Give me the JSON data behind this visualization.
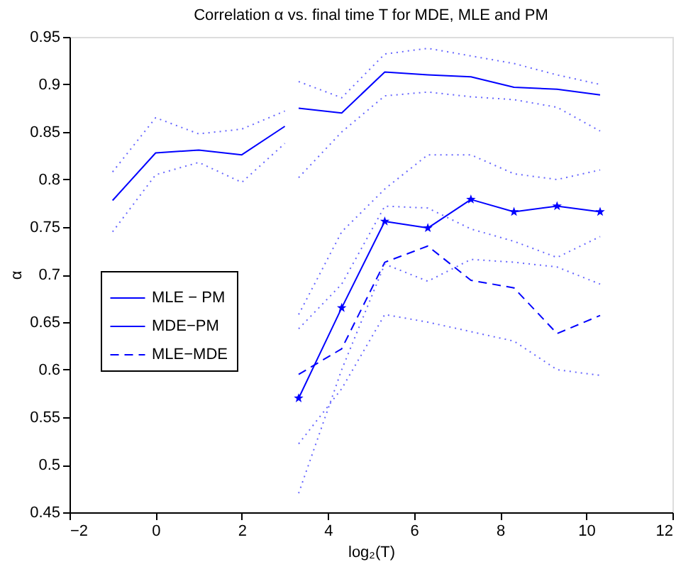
{
  "chart_data": {
    "type": "line",
    "title": "Correlation α vs. final time T for MDE, MLE and PM",
    "xlabel": "log₂(T)",
    "ylabel": "α",
    "xlim": [
      -2,
      12
    ],
    "xticks": [
      -2,
      0,
      2,
      4,
      6,
      8,
      10,
      12
    ],
    "ylim": [
      0.45,
      0.95
    ],
    "yticks": [
      0.45,
      0.5,
      0.55,
      0.6,
      0.65,
      0.7,
      0.75,
      0.8,
      0.85,
      0.9,
      0.95
    ],
    "grid": false,
    "legend": "left",
    "series": [
      {
        "name": "MLE − PM",
        "color": "#0000ff",
        "line_style": "solid",
        "marker": "none",
        "x": [
          -1,
          0,
          1,
          2,
          3
        ],
        "values": [
          0.778,
          0.828,
          0.831,
          0.826,
          0.856
        ]
      },
      {
        "name": "MDE−PM",
        "color": "#0000ff",
        "line_style": "solid",
        "marker": "star",
        "x": [
          3.32,
          4.32,
          5.32,
          6.32,
          7.32,
          8.32,
          9.32,
          10.32
        ],
        "values": [
          0.57,
          0.665,
          0.756,
          0.749,
          0.779,
          0.766,
          0.772,
          0.766
        ]
      },
      {
        "name": "MLE−MDE",
        "color": "#0000ff",
        "line_style": "dashed",
        "marker": "none",
        "x": [
          3.32,
          4.32,
          5.32,
          6.32,
          7.32,
          8.32,
          9.32,
          10.32
        ],
        "values": [
          0.595,
          0.622,
          0.713,
          0.73,
          0.694,
          0.686,
          0.638,
          0.657
        ]
      },
      {
        "color": "#0000ff",
        "line_style": "solid",
        "marker": "none",
        "x": [
          3.32,
          4.32,
          5.32,
          6.32,
          7.32,
          8.32,
          9.32,
          10.32
        ],
        "values": [
          0.875,
          0.87,
          0.913,
          0.91,
          0.908,
          0.897,
          0.895,
          0.889
        ]
      },
      {
        "color": "#6666ff",
        "line_style": "dotted",
        "marker": "none",
        "x": [
          -1,
          0,
          1,
          2,
          3
        ],
        "values": [
          0.808,
          0.865,
          0.848,
          0.853,
          0.872
        ]
      },
      {
        "color": "#6666ff",
        "line_style": "dotted",
        "marker": "none",
        "x": [
          -1,
          0,
          1,
          2,
          3
        ],
        "values": [
          0.745,
          0.805,
          0.818,
          0.797,
          0.838
        ]
      },
      {
        "color": "#6666ff",
        "line_style": "dotted",
        "marker": "none",
        "x": [
          3.32,
          4.32,
          5.32,
          6.32,
          7.32,
          8.32,
          9.32,
          10.32
        ],
        "values": [
          0.903,
          0.886,
          0.932,
          0.938,
          0.93,
          0.922,
          0.91,
          0.9
        ]
      },
      {
        "color": "#6666ff",
        "line_style": "dotted",
        "marker": "none",
        "x": [
          3.32,
          4.32,
          5.32,
          6.32,
          7.32,
          8.32,
          9.32,
          10.32
        ],
        "values": [
          0.802,
          0.85,
          0.888,
          0.892,
          0.887,
          0.884,
          0.876,
          0.851
        ]
      },
      {
        "color": "#6666ff",
        "line_style": "dotted",
        "marker": "none",
        "x": [
          3.32,
          4.32,
          5.32,
          6.32,
          7.32,
          8.32,
          9.32,
          10.32
        ],
        "values": [
          0.658,
          0.745,
          0.79,
          0.826,
          0.826,
          0.806,
          0.8,
          0.81
        ]
      },
      {
        "color": "#6666ff",
        "line_style": "dotted",
        "marker": "none",
        "x": [
          3.32,
          4.32,
          5.32,
          6.32,
          7.32,
          8.32,
          9.32,
          10.32
        ],
        "values": [
          0.47,
          0.6,
          0.711,
          0.693,
          0.716,
          0.713,
          0.708,
          0.69
        ]
      },
      {
        "color": "#6666ff",
        "line_style": "dotted",
        "marker": "none",
        "x": [
          3.32,
          4.32,
          5.32,
          6.32,
          7.32,
          8.32,
          9.32,
          10.32
        ],
        "values": [
          0.643,
          0.69,
          0.772,
          0.77,
          0.748,
          0.735,
          0.718,
          0.74
        ]
      },
      {
        "color": "#6666ff",
        "line_style": "dotted",
        "marker": "none",
        "x": [
          3.32,
          4.32,
          5.32,
          6.32,
          7.32,
          8.32,
          9.32,
          10.32
        ],
        "values": [
          0.522,
          0.58,
          0.658,
          0.65,
          0.64,
          0.63,
          0.6,
          0.594
        ]
      }
    ]
  }
}
